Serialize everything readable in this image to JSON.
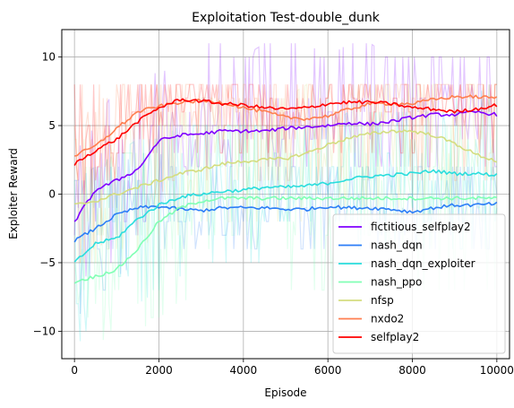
{
  "chart_data": {
    "type": "line",
    "title": "Exploitation Test-double_dunk",
    "xlabel": "Episode",
    "ylabel": "Exploiter Reward",
    "xlim": [
      -300,
      10300
    ],
    "ylim": [
      -12,
      12
    ],
    "xticks": [
      0,
      2000,
      4000,
      6000,
      8000,
      10000
    ],
    "yticks": [
      -10,
      -5,
      0,
      5,
      10
    ],
    "xtick_labels": [
      "0",
      "2000",
      "4000",
      "6000",
      "8000",
      "10000"
    ],
    "ytick_labels": [
      "−10",
      "−5",
      "0",
      "5",
      "10"
    ],
    "grid": true,
    "legend_position": "lower-right",
    "x": [
      0,
      500,
      1000,
      1500,
      2000,
      2500,
      3000,
      3500,
      4000,
      4500,
      5000,
      5500,
      6000,
      6500,
      7000,
      7500,
      8000,
      8500,
      9000,
      9500,
      10000
    ],
    "series": [
      {
        "name": "fictitious_selfplay2",
        "color": "#8000ff",
        "values": [
          -2.0,
          0.3,
          1.0,
          1.8,
          3.9,
          4.3,
          4.4,
          4.6,
          4.6,
          4.6,
          4.8,
          4.9,
          5.0,
          5.2,
          5.1,
          5.3,
          5.6,
          5.8,
          5.8,
          6.0,
          5.8
        ],
        "raw_low": [
          -7,
          -6,
          -5,
          -3,
          -1,
          1,
          2,
          2,
          2,
          2,
          2,
          2,
          2,
          2,
          2,
          2,
          2,
          2,
          2,
          2,
          2
        ],
        "raw_high": [
          3,
          5,
          8,
          8,
          9,
          10,
          11,
          11,
          10,
          11,
          11,
          11,
          10,
          11,
          11,
          10,
          10,
          10,
          10,
          10,
          10
        ]
      },
      {
        "name": "nash_dqn",
        "color": "#2c7ef7",
        "values": [
          -3.4,
          -2.5,
          -1.5,
          -1.0,
          -0.9,
          -1.1,
          -1.2,
          -1.0,
          -1.0,
          -1.0,
          -1.1,
          -1.1,
          -0.9,
          -1.0,
          -1.0,
          -1.1,
          -1.3,
          -1.0,
          -0.8,
          -0.8,
          -0.7
        ],
        "raw_low": [
          -9,
          -8,
          -6,
          -5,
          -4,
          -4,
          -4,
          -4,
          -4,
          -4,
          -4,
          -4,
          -4,
          -4,
          -4,
          -4,
          -4,
          -4,
          -4,
          -4,
          -4
        ],
        "raw_high": [
          1,
          2,
          2,
          3,
          3,
          2,
          2,
          2,
          2,
          2,
          2,
          2,
          2,
          2,
          2,
          2,
          2,
          2,
          2,
          2,
          2
        ]
      },
      {
        "name": "nash_dqn_exploiter",
        "color": "#2adddd",
        "values": [
          -5.0,
          -3.6,
          -3.2,
          -1.8,
          -0.8,
          -0.2,
          0.0,
          0.2,
          0.3,
          0.5,
          0.5,
          0.6,
          0.8,
          1.1,
          1.3,
          1.4,
          1.5,
          1.7,
          1.5,
          1.5,
          1.4
        ],
        "raw_low": [
          -11,
          -10,
          -9,
          -8,
          -7,
          -6,
          -6,
          -5,
          -5,
          -5,
          -5,
          -5,
          -4,
          -4,
          -4,
          -4,
          -4,
          -4,
          -4,
          -4,
          -4
        ],
        "raw_high": [
          1,
          2,
          3,
          4,
          4,
          5,
          5,
          5,
          5,
          5,
          5,
          5,
          5,
          6,
          6,
          6,
          6,
          6,
          7,
          7,
          9
        ]
      },
      {
        "name": "nash_ppo",
        "color": "#80ffb4",
        "values": [
          -6.4,
          -6.0,
          -5.5,
          -4.0,
          -2.0,
          -1.0,
          -0.5,
          -0.3,
          -0.3,
          -0.3,
          -0.3,
          -0.3,
          -0.3,
          -0.3,
          -0.3,
          -0.3,
          -0.3,
          -0.3,
          -0.3,
          -0.3,
          -0.3
        ],
        "raw_low": [
          -11,
          -11,
          -10,
          -10,
          -9,
          -8,
          -7,
          -7,
          -7,
          -7,
          -7,
          -7,
          -7,
          -7,
          -7,
          -7,
          -7,
          -7,
          -7,
          -7,
          -7
        ],
        "raw_high": [
          2,
          2,
          3,
          3,
          4,
          4,
          5,
          5,
          5,
          5,
          5,
          5,
          5,
          5,
          5,
          5,
          5,
          5,
          5,
          5,
          5
        ]
      },
      {
        "name": "nfsp",
        "color": "#d4dd80",
        "values": [
          -0.8,
          -0.5,
          0.0,
          0.5,
          1.0,
          1.5,
          1.8,
          2.2,
          2.4,
          2.5,
          2.6,
          3.0,
          3.6,
          4.1,
          4.4,
          4.6,
          4.6,
          4.3,
          3.7,
          2.9,
          2.4
        ],
        "raw_low": [
          -5,
          -5,
          -4,
          -4,
          -3,
          -3,
          -2,
          -2,
          -2,
          -2,
          -2,
          -2,
          -1,
          -1,
          -1,
          -1,
          -1,
          -1,
          -1,
          -1,
          -1
        ],
        "raw_high": [
          4,
          4,
          5,
          5,
          6,
          6,
          7,
          7,
          7,
          7,
          7,
          8,
          8,
          8,
          8,
          8,
          8,
          8,
          8,
          8,
          8
        ]
      },
      {
        "name": "nxdo2",
        "color": "#ff7e4f",
        "values": [
          2.8,
          3.5,
          4.8,
          6.0,
          6.4,
          6.7,
          6.8,
          6.7,
          6.3,
          6.0,
          5.6,
          5.5,
          5.7,
          6.2,
          6.6,
          6.6,
          6.6,
          6.9,
          7.1,
          7.1,
          7.0
        ],
        "raw_low": [
          -6,
          -4,
          -3,
          -2,
          0,
          1,
          1,
          1,
          1,
          1,
          1,
          1,
          1,
          1,
          1,
          1,
          1,
          1,
          1,
          1,
          1
        ],
        "raw_high": [
          8,
          8,
          8,
          8,
          8,
          8,
          8,
          8,
          8,
          8,
          8,
          8,
          8,
          8,
          8,
          8,
          8,
          8,
          8,
          8,
          8
        ]
      },
      {
        "name": "selfplay2",
        "color": "#ff0000",
        "values": [
          2.2,
          3.2,
          4.0,
          5.3,
          6.3,
          6.9,
          6.8,
          6.6,
          6.5,
          6.3,
          6.2,
          6.3,
          6.6,
          6.7,
          6.7,
          6.6,
          6.3,
          6.2,
          6.0,
          6.2,
          6.5
        ],
        "raw_low": [
          -1,
          0,
          1,
          2,
          3,
          3,
          3,
          3,
          3,
          3,
          3,
          3,
          3,
          3,
          3,
          3,
          3,
          3,
          3,
          3,
          3
        ],
        "raw_high": [
          8,
          8,
          8,
          8,
          8,
          8,
          8,
          8,
          8,
          8,
          8,
          8,
          8,
          8,
          8,
          8,
          8,
          8,
          8,
          8,
          8
        ]
      }
    ]
  }
}
